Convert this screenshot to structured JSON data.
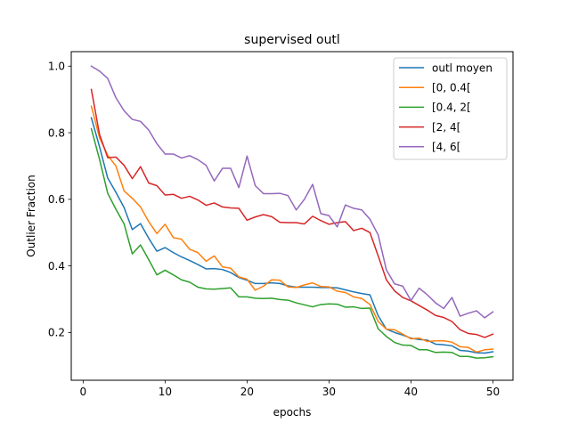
{
  "chart_data": {
    "type": "line",
    "title": "supervised outl",
    "xlabel": "epochs",
    "ylabel": "Outlier Fraction",
    "xlim": [
      -1.45,
      52.45
    ],
    "ylim": [
      0.0565,
      1.0435
    ],
    "xticks": [
      0,
      10,
      20,
      30,
      40,
      50
    ],
    "xtick_labels": [
      "0",
      "10",
      "20",
      "30",
      "40",
      "50"
    ],
    "yticks": [
      0.2,
      0.4,
      0.6,
      0.8,
      1.0
    ],
    "ytick_labels": [
      "0.2",
      "0.4",
      "0.6",
      "0.8",
      "1.0"
    ],
    "grid": false,
    "legend_position": "upper-right",
    "x": [
      1,
      2,
      3,
      4,
      5,
      6,
      7,
      8,
      9,
      10,
      11,
      12,
      13,
      14,
      15,
      16,
      17,
      18,
      19,
      20,
      21,
      22,
      23,
      24,
      25,
      26,
      27,
      28,
      29,
      30,
      31,
      32,
      33,
      34,
      35,
      36,
      37,
      38,
      39,
      40,
      41,
      42,
      43,
      44,
      45,
      46,
      47,
      48,
      49,
      50
    ],
    "series": [
      {
        "name": "outl moyen",
        "color": "#1f77b4",
        "values": [
          0.845,
          0.758,
          0.664,
          0.621,
          0.575,
          0.509,
          0.527,
          0.483,
          0.444,
          0.455,
          0.44,
          0.427,
          0.416,
          0.404,
          0.391,
          0.392,
          0.389,
          0.38,
          0.365,
          0.357,
          0.347,
          0.347,
          0.349,
          0.347,
          0.34,
          0.336,
          0.336,
          0.336,
          0.335,
          0.335,
          0.334,
          0.328,
          0.322,
          0.317,
          0.313,
          0.25,
          0.21,
          0.2,
          0.192,
          0.183,
          0.179,
          0.177,
          0.165,
          0.163,
          0.16,
          0.146,
          0.144,
          0.139,
          0.138,
          0.142
        ]
      },
      {
        "name": "[0, 0.4[",
        "color": "#ff7f0e",
        "values": [
          0.88,
          0.785,
          0.732,
          0.7,
          0.625,
          0.603,
          0.577,
          0.533,
          0.497,
          0.525,
          0.485,
          0.48,
          0.45,
          0.44,
          0.414,
          0.43,
          0.397,
          0.393,
          0.367,
          0.36,
          0.327,
          0.339,
          0.358,
          0.357,
          0.337,
          0.335,
          0.343,
          0.349,
          0.338,
          0.337,
          0.324,
          0.32,
          0.307,
          0.302,
          0.284,
          0.233,
          0.21,
          0.208,
          0.195,
          0.181,
          0.183,
          0.173,
          0.175,
          0.175,
          0.171,
          0.157,
          0.155,
          0.141,
          0.148,
          0.15
        ]
      },
      {
        "name": "[0.4, 2[",
        "color": "#2ca02c",
        "values": [
          0.812,
          0.72,
          0.618,
          0.57,
          0.526,
          0.436,
          0.463,
          0.419,
          0.373,
          0.387,
          0.373,
          0.358,
          0.351,
          0.336,
          0.331,
          0.33,
          0.332,
          0.334,
          0.307,
          0.307,
          0.303,
          0.302,
          0.303,
          0.299,
          0.297,
          0.289,
          0.283,
          0.277,
          0.284,
          0.286,
          0.285,
          0.276,
          0.277,
          0.272,
          0.273,
          0.211,
          0.188,
          0.17,
          0.162,
          0.161,
          0.148,
          0.148,
          0.14,
          0.141,
          0.14,
          0.128,
          0.128,
          0.123,
          0.124,
          0.127
        ]
      },
      {
        "name": "[2, 4[",
        "color": "#d62728",
        "values": [
          0.93,
          0.795,
          0.725,
          0.727,
          0.702,
          0.662,
          0.698,
          0.649,
          0.641,
          0.613,
          0.615,
          0.603,
          0.609,
          0.598,
          0.582,
          0.589,
          0.577,
          0.574,
          0.573,
          0.537,
          0.547,
          0.554,
          0.548,
          0.531,
          0.53,
          0.53,
          0.526,
          0.549,
          0.536,
          0.525,
          0.53,
          0.533,
          0.506,
          0.513,
          0.5,
          0.43,
          0.358,
          0.325,
          0.305,
          0.295,
          0.281,
          0.267,
          0.251,
          0.245,
          0.233,
          0.208,
          0.197,
          0.194,
          0.185,
          0.195
        ]
      },
      {
        "name": "[4, 6[",
        "color": "#9467bd",
        "values": [
          1.0,
          0.985,
          0.963,
          0.905,
          0.866,
          0.84,
          0.834,
          0.808,
          0.767,
          0.736,
          0.736,
          0.724,
          0.731,
          0.719,
          0.702,
          0.655,
          0.693,
          0.693,
          0.635,
          0.73,
          0.641,
          0.617,
          0.617,
          0.618,
          0.611,
          0.568,
          0.6,
          0.645,
          0.557,
          0.551,
          0.517,
          0.583,
          0.573,
          0.568,
          0.54,
          0.493,
          0.388,
          0.346,
          0.339,
          0.296,
          0.333,
          0.313,
          0.289,
          0.272,
          0.305,
          0.249,
          0.258,
          0.265,
          0.244,
          0.262
        ]
      }
    ]
  }
}
